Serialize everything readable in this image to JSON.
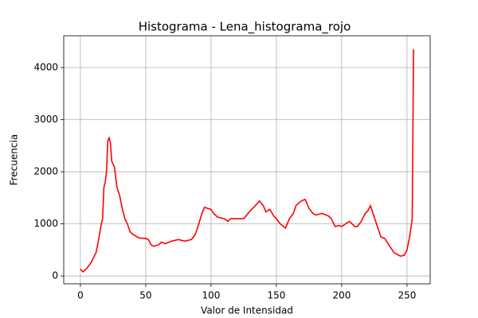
{
  "chart_data": {
    "type": "line",
    "title": "Histograma - Lena_histograma_rojo",
    "x_label": "Valor de Intensidad",
    "y_label": "Frecuencia",
    "x": [
      0,
      2,
      5,
      8,
      10,
      12,
      14,
      16,
      17,
      18,
      19,
      20,
      21,
      22,
      23,
      24,
      25,
      26,
      28,
      30,
      32,
      34,
      36,
      38,
      40,
      45,
      50,
      52,
      54,
      56,
      60,
      62,
      65,
      70,
      75,
      80,
      85,
      88,
      90,
      93,
      95,
      97,
      100,
      102,
      105,
      110,
      113,
      115,
      120,
      125,
      130,
      135,
      137,
      140,
      142,
      145,
      148,
      150,
      153,
      157,
      160,
      163,
      165,
      168,
      170,
      172,
      175,
      178,
      180,
      185,
      190,
      192,
      195,
      198,
      200,
      203,
      206,
      210,
      212,
      215,
      218,
      220,
      222,
      224,
      226,
      228,
      230,
      233,
      236,
      240,
      245,
      248,
      250,
      252,
      254,
      255
    ],
    "series": [
      {
        "name": "Rojo",
        "color": "#ff0000",
        "values": [
          130,
          80,
          150,
          250,
          350,
          450,
          700,
          1000,
          1100,
          1700,
          1800,
          2000,
          2600,
          2650,
          2550,
          2200,
          2150,
          2100,
          1700,
          1550,
          1300,
          1100,
          1000,
          850,
          800,
          730,
          720,
          700,
          600,
          570,
          600,
          650,
          620,
          670,
          700,
          670,
          700,
          800,
          950,
          1200,
          1320,
          1300,
          1280,
          1200,
          1130,
          1100,
          1050,
          1100,
          1100,
          1100,
          1250,
          1380,
          1440,
          1350,
          1230,
          1280,
          1150,
          1100,
          1000,
          920,
          1100,
          1200,
          1350,
          1420,
          1450,
          1470,
          1300,
          1200,
          1170,
          1200,
          1150,
          1100,
          950,
          970,
          950,
          1000,
          1050,
          950,
          950,
          1050,
          1200,
          1250,
          1350,
          1200,
          1050,
          900,
          750,
          720,
          600,
          450,
          380,
          400,
          500,
          750,
          1100,
          4350
        ]
      }
    ],
    "xlim": [
      -12.75,
      267.75
    ],
    "ylim": [
      -150,
      4610
    ],
    "xticks": [
      0,
      50,
      100,
      150,
      200,
      250
    ],
    "yticks": [
      0,
      1000,
      2000,
      3000,
      4000
    ],
    "grid": true
  }
}
